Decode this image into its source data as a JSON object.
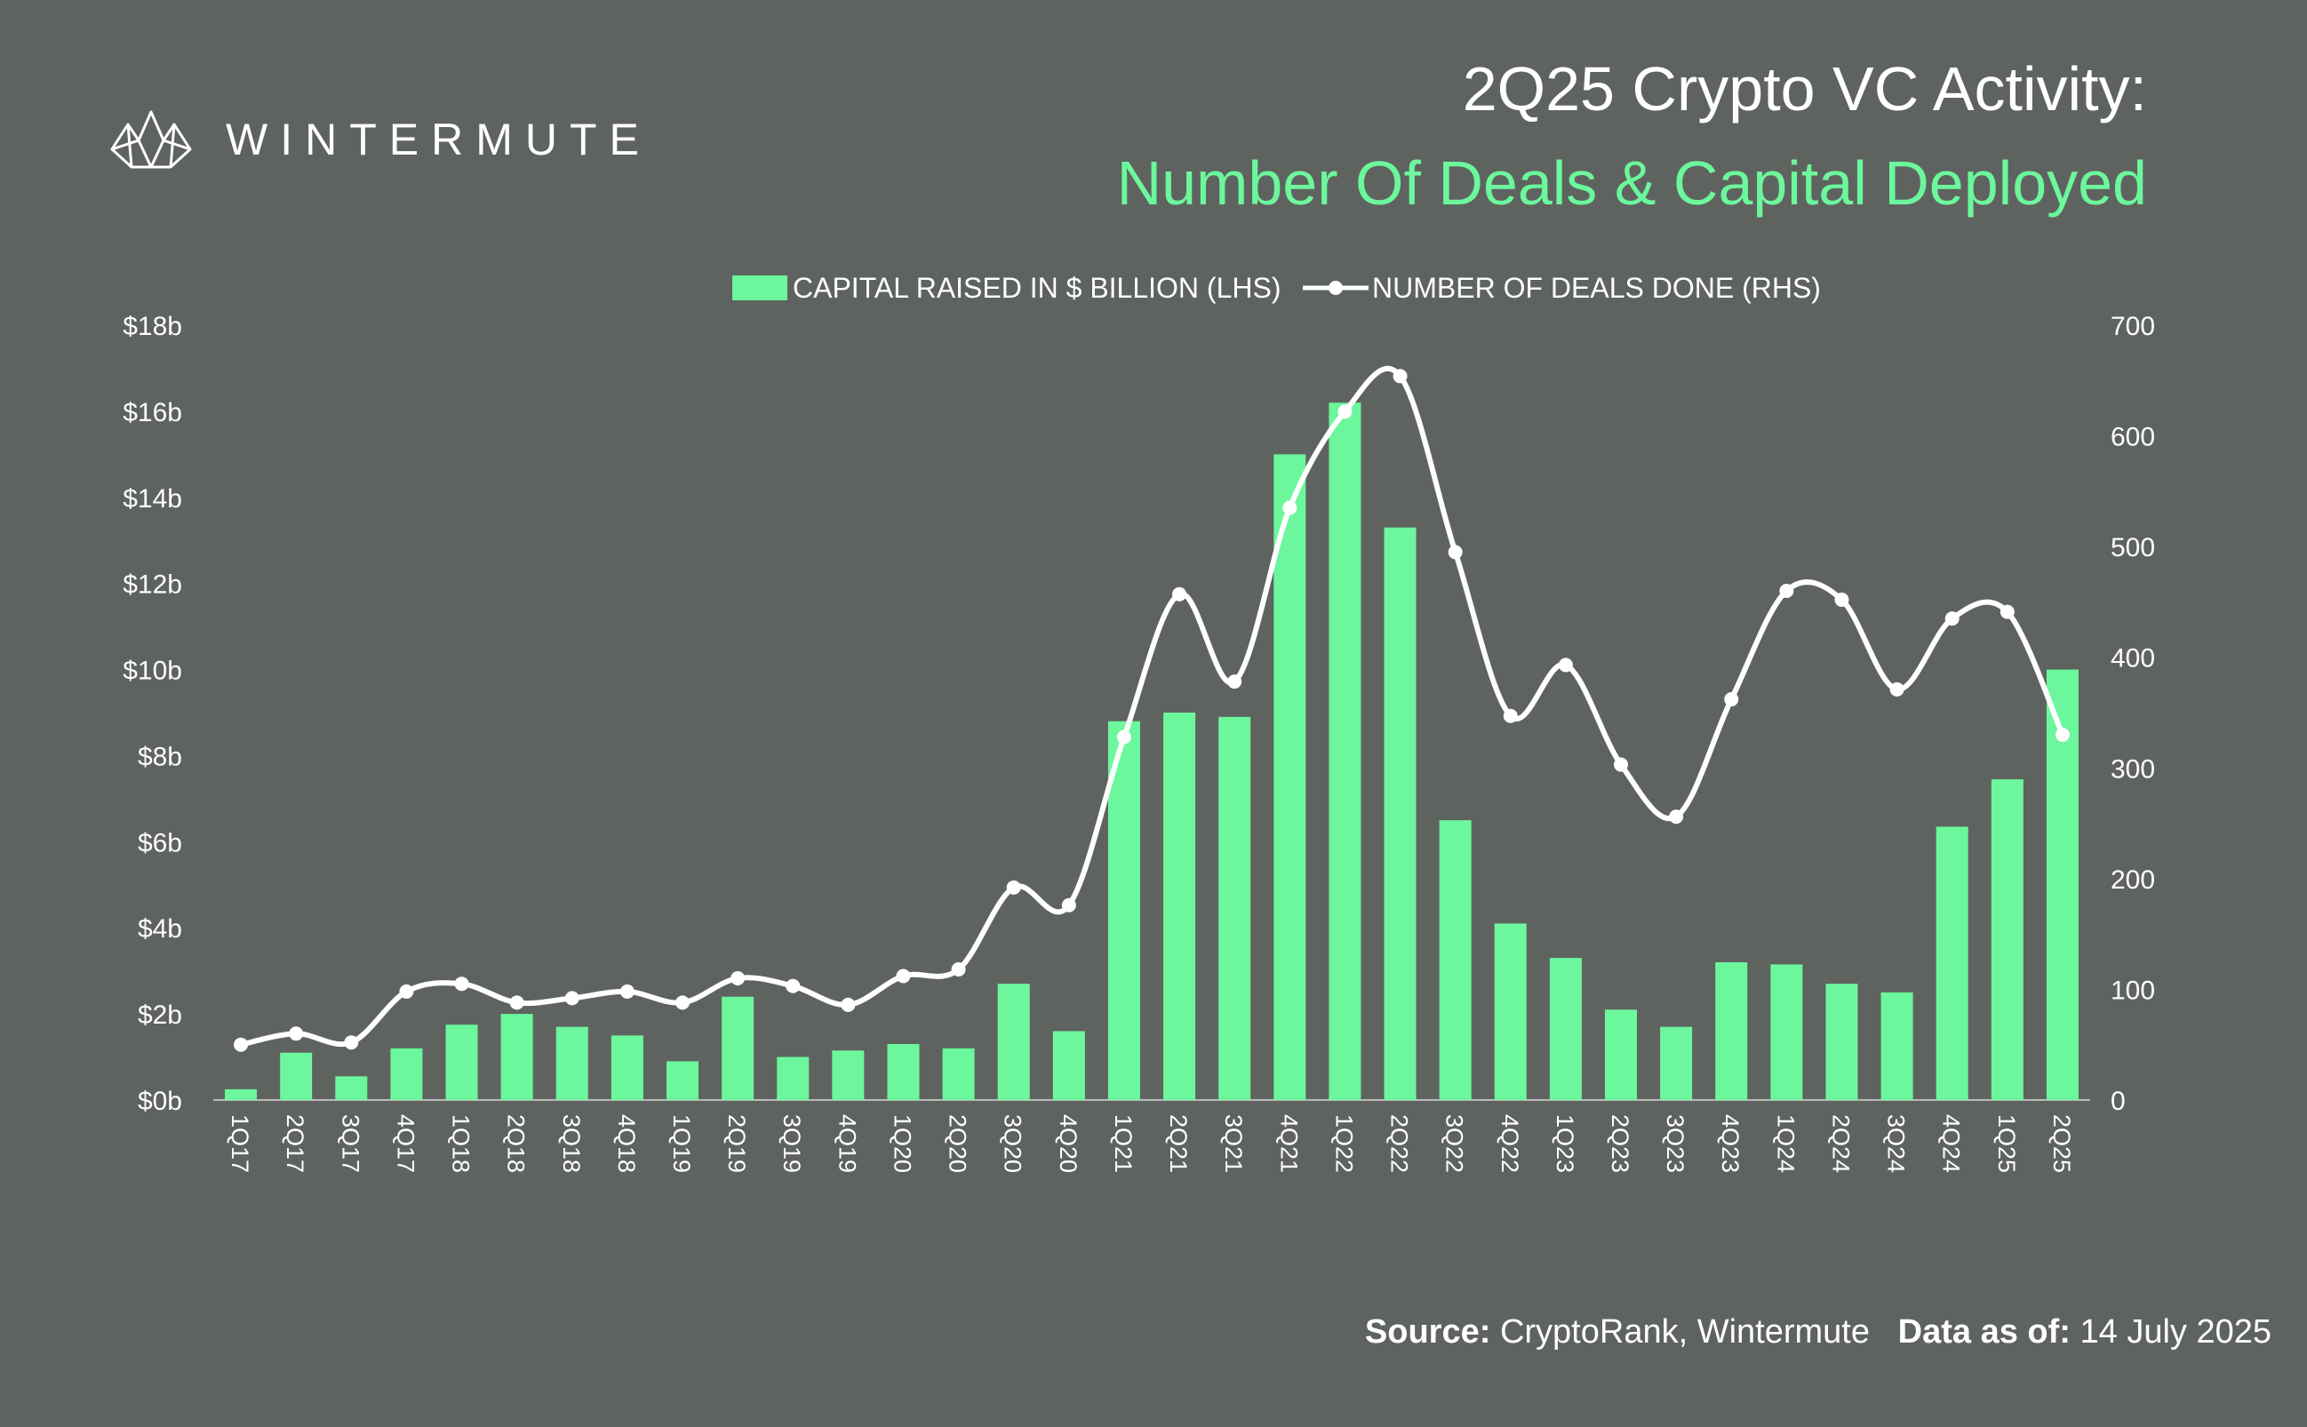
{
  "brand": {
    "name": "WINTERMUTE",
    "logo_icon": "wintermute-logo-icon"
  },
  "header": {
    "title_line1": "2Q25 Crypto VC Activity:",
    "title_line2": "Number Of Deals & Capital Deployed"
  },
  "footer": {
    "source_label": "Source:",
    "source_value": "CryptoRank, Wintermute",
    "asof_label": "Data as of:",
    "asof_value": "14 July 2025"
  },
  "colors": {
    "bar": "#6cf79c",
    "line": "#ffffff",
    "background": "#5f6360",
    "accent_title": "#6cf79c"
  },
  "chart_data": {
    "type": "bar+line",
    "categories": [
      "1Q17",
      "2Q17",
      "3Q17",
      "4Q17",
      "1Q18",
      "2Q18",
      "3Q18",
      "4Q18",
      "1Q19",
      "2Q19",
      "3Q19",
      "4Q19",
      "1Q20",
      "2Q20",
      "3Q20",
      "4Q20",
      "1Q21",
      "2Q21",
      "3Q21",
      "4Q21",
      "1Q22",
      "2Q22",
      "3Q22",
      "4Q22",
      "1Q23",
      "2Q23",
      "3Q23",
      "4Q23",
      "1Q24",
      "2Q24",
      "3Q24",
      "4Q24",
      "1Q25",
      "2Q25"
    ],
    "series": [
      {
        "name": "CAPITAL RAISED IN $ BILLION (LHS)",
        "type": "bar",
        "axis": "left",
        "values": [
          0.25,
          1.1,
          0.55,
          1.2,
          1.75,
          2.0,
          1.7,
          1.5,
          0.9,
          2.4,
          1.0,
          1.15,
          1.3,
          1.2,
          2.7,
          1.6,
          8.8,
          9.0,
          8.9,
          15.0,
          16.2,
          13.3,
          6.5,
          4.1,
          3.3,
          2.1,
          1.7,
          3.2,
          3.15,
          2.7,
          2.5,
          6.35,
          7.45,
          10.0
        ]
      },
      {
        "name": "NUMBER OF DEALS DONE (RHS)",
        "type": "line",
        "axis": "right",
        "values": [
          50,
          60,
          52,
          98,
          105,
          88,
          92,
          98,
          88,
          110,
          103,
          86,
          112,
          118,
          192,
          176,
          328,
          457,
          378,
          535,
          622,
          654,
          495,
          347,
          393,
          303,
          256,
          362,
          460,
          452,
          371,
          435,
          441,
          330
        ]
      }
    ],
    "left_axis": {
      "min": 0,
      "max": 18,
      "ticks": [
        "$0b",
        "$2b",
        "$4b",
        "$6b",
        "$8b",
        "$10b",
        "$12b",
        "$14b",
        "$16b",
        "$18b"
      ]
    },
    "right_axis": {
      "min": 0,
      "max": 700,
      "ticks": [
        "0",
        "100",
        "200",
        "300",
        "400",
        "500",
        "600",
        "700"
      ]
    },
    "legend_position": "top-center",
    "grid": false
  }
}
